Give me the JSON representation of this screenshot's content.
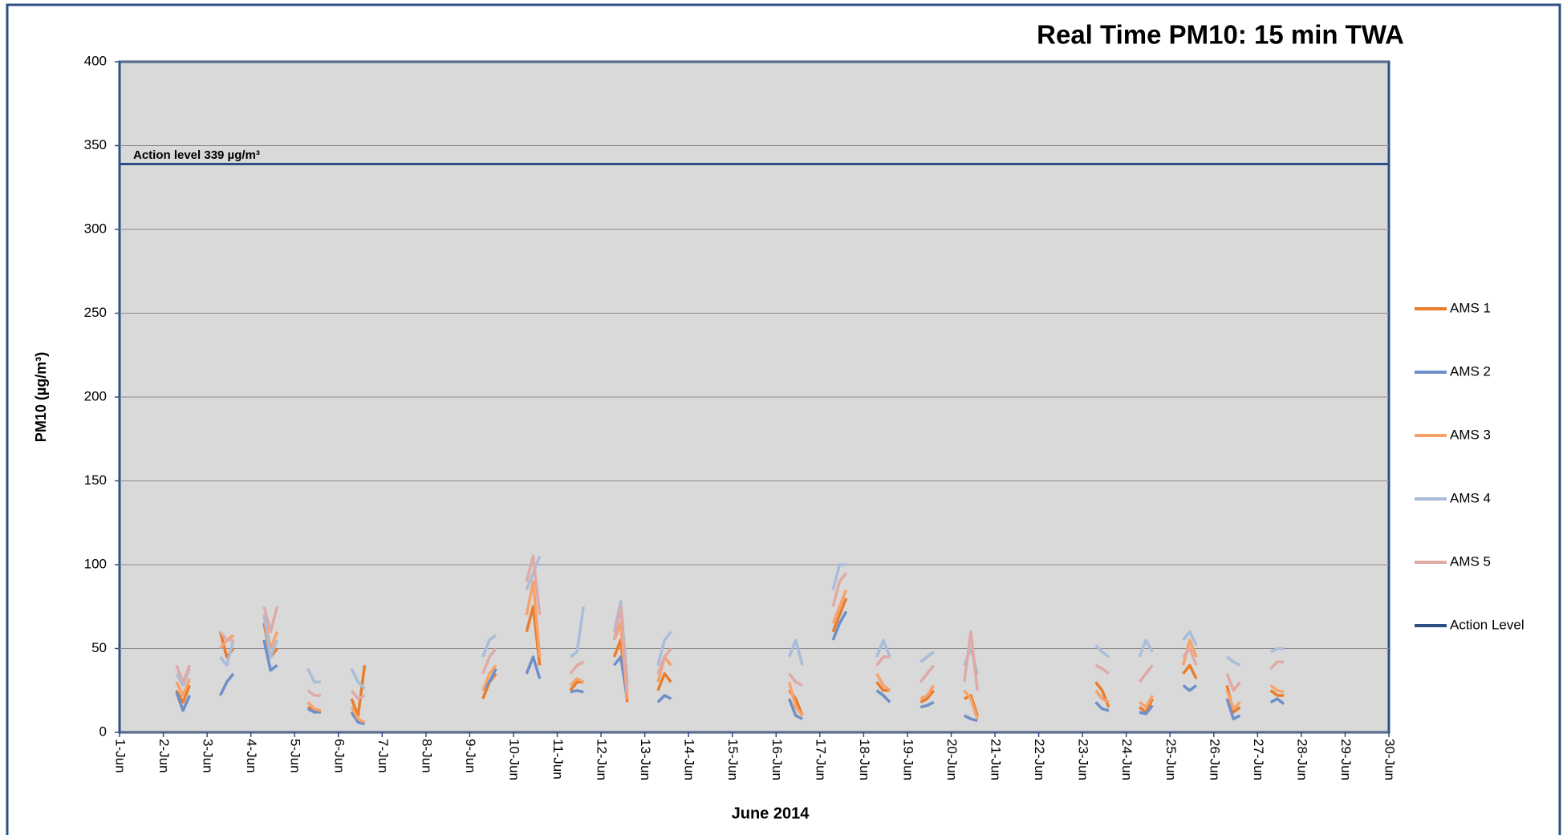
{
  "chart_data": {
    "type": "line",
    "title": "Real Time PM10: 15 min TWA",
    "x_label": "June 2014",
    "y_label": "PM10 (µg/m³)",
    "annotation": "Action level 339 µg/m³",
    "xlim": [
      1,
      30
    ],
    "xticks": [
      {
        "value": 1,
        "label": "1-Jun"
      },
      {
        "value": 2,
        "label": "2-Jun"
      },
      {
        "value": 3,
        "label": "3-Jun"
      },
      {
        "value": 4,
        "label": "4-Jun"
      },
      {
        "value": 5,
        "label": "5-Jun"
      },
      {
        "value": 6,
        "label": "6-Jun"
      },
      {
        "value": 7,
        "label": "7-Jun"
      },
      {
        "value": 8,
        "label": "8-Jun"
      },
      {
        "value": 9,
        "label": "9-Jun"
      },
      {
        "value": 10,
        "label": "10-Jun"
      },
      {
        "value": 11,
        "label": "11-Jun"
      },
      {
        "value": 12,
        "label": "12-Jun"
      },
      {
        "value": 13,
        "label": "13-Jun"
      },
      {
        "value": 14,
        "label": "14-Jun"
      },
      {
        "value": 15,
        "label": "15-Jun"
      },
      {
        "value": 16,
        "label": "16-Jun"
      },
      {
        "value": 17,
        "label": "17-Jun"
      },
      {
        "value": 18,
        "label": "18-Jun"
      },
      {
        "value": 19,
        "label": "19-Jun"
      },
      {
        "value": 20,
        "label": "20-Jun"
      },
      {
        "value": 21,
        "label": "21-Jun"
      },
      {
        "value": 22,
        "label": "22-Jun"
      },
      {
        "value": 23,
        "label": "23-Jun"
      },
      {
        "value": 24,
        "label": "24-Jun"
      },
      {
        "value": 25,
        "label": "25-Jun"
      },
      {
        "value": 26,
        "label": "26-Jun"
      },
      {
        "value": 27,
        "label": "27-Jun"
      },
      {
        "value": 28,
        "label": "28-Jun"
      },
      {
        "value": 29,
        "label": "29-Jun"
      },
      {
        "value": 30,
        "label": "30-Jun"
      }
    ],
    "ylim": [
      0,
      400
    ],
    "yticks": [
      0,
      50,
      100,
      150,
      200,
      250,
      300,
      350,
      400
    ],
    "grid": true,
    "legend": "right",
    "x": [
      2.3,
      2.45,
      2.6,
      2.7,
      3.3,
      3.45,
      3.6,
      3.7,
      4.3,
      4.45,
      4.6,
      4.7,
      5.3,
      5.45,
      5.6,
      5.7,
      6.3,
      6.45,
      6.6,
      6.7,
      9.3,
      9.45,
      9.6,
      9.7,
      10.3,
      10.45,
      10.6,
      10.7,
      11.3,
      11.45,
      11.6,
      11.7,
      12.3,
      12.45,
      12.6,
      12.7,
      13.3,
      13.45,
      13.6,
      13.7,
      16.3,
      16.45,
      16.6,
      16.7,
      17.3,
      17.45,
      17.6,
      17.7,
      18.3,
      18.45,
      18.6,
      18.7,
      19.3,
      19.45,
      19.6,
      19.7,
      20.3,
      20.45,
      20.6,
      20.7,
      23.3,
      23.45,
      23.6,
      23.7,
      24.3,
      24.45,
      24.6,
      24.7,
      25.3,
      25.45,
      25.6,
      25.7,
      26.3,
      26.45,
      26.6,
      26.7,
      27.3,
      27.45,
      27.6,
      27.7
    ],
    "series": [
      {
        "name": "AMS 1",
        "color": "#e87d2b",
        "values": [
          25,
          18,
          28,
          null,
          60,
          45,
          50,
          null,
          65,
          45,
          50,
          null,
          15,
          13,
          12,
          null,
          20,
          10,
          40,
          null,
          20,
          30,
          35,
          null,
          60,
          75,
          40,
          null,
          25,
          30,
          30,
          null,
          45,
          55,
          18,
          null,
          25,
          35,
          30,
          null,
          25,
          20,
          10,
          null,
          60,
          70,
          80,
          null,
          30,
          25,
          25,
          null,
          18,
          20,
          25,
          null,
          20,
          22,
          10,
          null,
          30,
          25,
          15,
          null,
          15,
          12,
          20,
          null,
          35,
          40,
          32,
          null,
          28,
          12,
          15,
          null,
          25,
          22,
          22,
          null
        ]
      },
      {
        "name": "AMS 2",
        "color": "#6f8fc7",
        "values": [
          24,
          13,
          22,
          null,
          22,
          30,
          35,
          null,
          55,
          37,
          40,
          null,
          14,
          12,
          12,
          null,
          12,
          6,
          5,
          null,
          25,
          30,
          38,
          null,
          35,
          45,
          32,
          null,
          24,
          25,
          24,
          null,
          40,
          45,
          20,
          null,
          18,
          22,
          20,
          null,
          20,
          10,
          8,
          null,
          55,
          65,
          72,
          null,
          25,
          22,
          18,
          null,
          15,
          16,
          18,
          null,
          10,
          8,
          7,
          null,
          18,
          14,
          13,
          null,
          12,
          11,
          16,
          null,
          28,
          25,
          28,
          null,
          20,
          8,
          10,
          null,
          18,
          20,
          17,
          null
        ]
      },
      {
        "name": "AMS 3",
        "color": "#f7a26a",
        "values": [
          30,
          22,
          32,
          null,
          50,
          55,
          58,
          null,
          70,
          50,
          60,
          null,
          18,
          14,
          13,
          null,
          15,
          8,
          6,
          null,
          25,
          35,
          40,
          null,
          70,
          90,
          45,
          null,
          28,
          32,
          30,
          null,
          55,
          65,
          20,
          null,
          30,
          45,
          40,
          null,
          30,
          15,
          10,
          null,
          65,
          75,
          85,
          null,
          35,
          28,
          25,
          null,
          20,
          22,
          28,
          null,
          25,
          20,
          8,
          null,
          25,
          20,
          18,
          null,
          18,
          15,
          22,
          null,
          40,
          55,
          45,
          null,
          25,
          14,
          18,
          null,
          28,
          25,
          24,
          null
        ]
      },
      {
        "name": "AMS 4",
        "color": "#a9bcd9",
        "values": [
          35,
          28,
          38,
          null,
          45,
          40,
          55,
          null,
          70,
          45,
          55,
          null,
          38,
          30,
          30,
          null,
          38,
          30,
          26,
          null,
          45,
          55,
          58,
          null,
          85,
          95,
          105,
          null,
          45,
          48,
          75,
          null,
          60,
          78,
          30,
          null,
          40,
          55,
          60,
          null,
          45,
          55,
          40,
          null,
          85,
          100,
          100,
          null,
          45,
          55,
          45,
          null,
          42,
          45,
          48,
          null,
          40,
          50,
          35,
          null,
          52,
          48,
          45,
          null,
          45,
          55,
          48,
          null,
          55,
          60,
          52,
          null,
          45,
          42,
          40,
          null,
          48,
          50,
          50,
          null
        ]
      },
      {
        "name": "AMS 5",
        "color": "#e0a9a6",
        "values": [
          40,
          30,
          40,
          null,
          60,
          55,
          55,
          null,
          75,
          60,
          75,
          null,
          25,
          22,
          22,
          null,
          25,
          20,
          22,
          null,
          35,
          45,
          50,
          null,
          90,
          105,
          70,
          null,
          35,
          40,
          42,
          null,
          55,
          75,
          25,
          null,
          35,
          45,
          50,
          null,
          35,
          30,
          28,
          null,
          75,
          90,
          95,
          null,
          40,
          45,
          45,
          null,
          30,
          35,
          40,
          null,
          30,
          60,
          25,
          null,
          40,
          38,
          35,
          null,
          30,
          35,
          40,
          null,
          45,
          50,
          40,
          null,
          35,
          25,
          30,
          null,
          38,
          42,
          42,
          null
        ]
      },
      {
        "name": "Action Level",
        "color": "#2d4f85",
        "x": [
          1,
          30
        ],
        "values": [
          339,
          339
        ]
      }
    ]
  }
}
